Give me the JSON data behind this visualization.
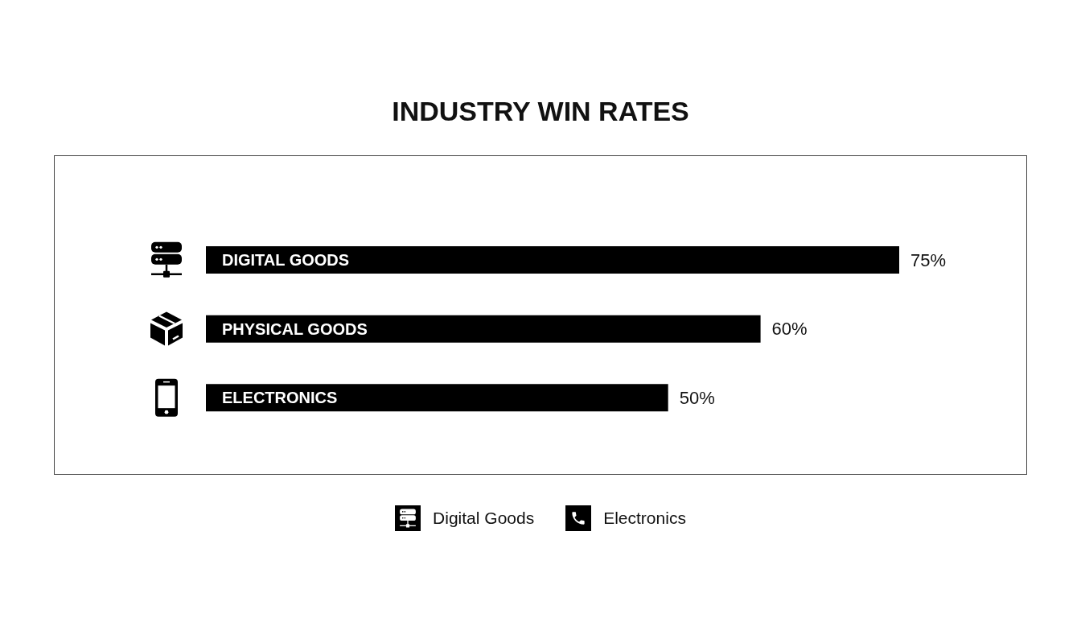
{
  "chart_data": {
    "type": "bar",
    "title": "INDUSTRY WIN RATES",
    "orientation": "horizontal",
    "stacked": true,
    "categories": [
      "DIGITAL GOODS",
      "PHYSICAL GOODS",
      "ELECTRONICS"
    ],
    "series": [
      {
        "name": "Digital Goods",
        "color": "#000000",
        "values": [
          75,
          null,
          null
        ],
        "value_labels": [
          "75%",
          null,
          null
        ]
      },
      {
        "color": "#000000",
        "values": [
          null,
          60,
          null
        ],
        "value_labels": [
          null,
          "60%",
          null
        ]
      },
      {
        "name": "Electronics",
        "color": "#000000",
        "values": [
          null,
          null,
          50
        ],
        "value_labels": [
          null,
          null,
          "50%"
        ]
      }
    ],
    "legend": "bottom"
  }
}
